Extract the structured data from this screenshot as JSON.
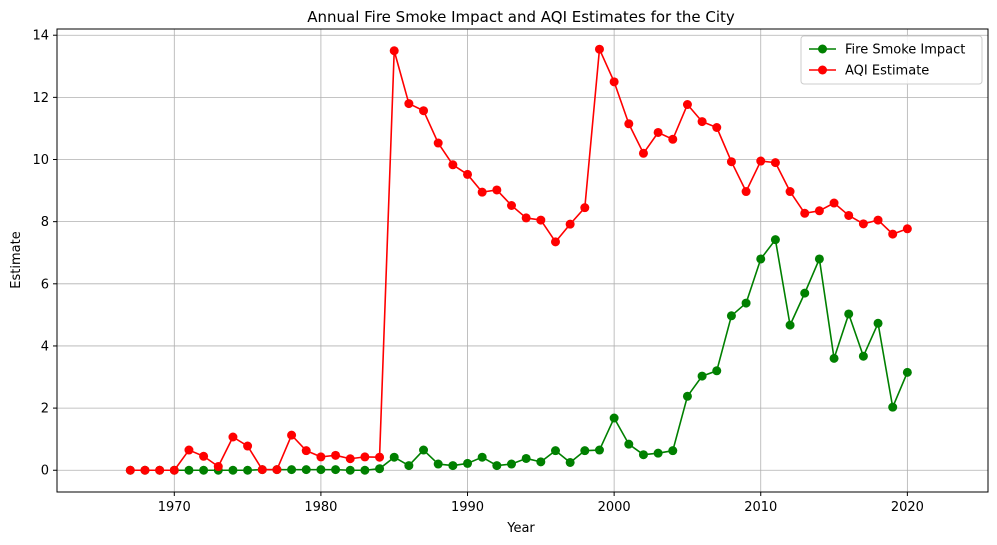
{
  "chart_data": {
    "type": "line",
    "title": "Annual Fire Smoke Impact and AQI Estimates for the City",
    "xlabel": "Year",
    "ylabel": "Estimate",
    "xlim": [
      1962,
      2025.5
    ],
    "ylim": [
      -0.7,
      14.2
    ],
    "xticks": [
      1970,
      1980,
      1990,
      2000,
      2010,
      2020
    ],
    "yticks": [
      0,
      2,
      4,
      6,
      8,
      10,
      12,
      14
    ],
    "grid": true,
    "legend_position": "top-right",
    "x": [
      1967,
      1968,
      1969,
      1970,
      1971,
      1972,
      1973,
      1974,
      1975,
      1976,
      1977,
      1978,
      1979,
      1980,
      1981,
      1982,
      1983,
      1984,
      1985,
      1986,
      1987,
      1988,
      1989,
      1990,
      1991,
      1992,
      1993,
      1994,
      1995,
      1996,
      1997,
      1998,
      1999,
      2000,
      2001,
      2002,
      2003,
      2004,
      2005,
      2006,
      2007,
      2008,
      2009,
      2010,
      2011,
      2012,
      2013,
      2014,
      2015,
      2016,
      2017,
      2018,
      2019,
      2020
    ],
    "series": [
      {
        "name": "Fire Smoke Impact",
        "color": "#008000",
        "values": [
          0,
          0,
          0,
          0,
          0,
          0,
          0,
          0,
          0,
          0.02,
          0.02,
          0.02,
          0.02,
          0.02,
          0.02,
          0,
          0,
          0.05,
          0.42,
          0.15,
          0.65,
          0.2,
          0.15,
          0.22,
          0.42,
          0.15,
          0.2,
          0.38,
          0.27,
          0.63,
          0.25,
          0.63,
          0.65,
          1.68,
          0.84,
          0.5,
          0.55,
          0.63,
          2.38,
          3.03,
          3.2,
          4.97,
          5.38,
          6.8,
          7.42,
          4.67,
          5.7,
          6.8,
          3.6,
          5.03,
          3.67,
          4.73,
          2.03,
          3.15
        ]
      },
      {
        "name": "AQI Estimate",
        "color": "#ff0000",
        "values": [
          0,
          0,
          0,
          0,
          0.65,
          0.45,
          0.12,
          1.07,
          0.78,
          0.02,
          0.02,
          1.13,
          0.63,
          0.43,
          0.48,
          0.37,
          0.43,
          0.42,
          13.5,
          11.8,
          11.57,
          10.53,
          9.83,
          9.52,
          8.95,
          9.02,
          8.52,
          8.12,
          8.05,
          7.35,
          7.92,
          8.45,
          13.55,
          12.5,
          11.15,
          10.2,
          10.87,
          10.65,
          11.77,
          11.22,
          11.03,
          9.93,
          8.97,
          9.95,
          9.9,
          8.97,
          8.27,
          8.35,
          8.6,
          8.2,
          7.93,
          8.05,
          7.6,
          7.77
        ]
      }
    ]
  }
}
